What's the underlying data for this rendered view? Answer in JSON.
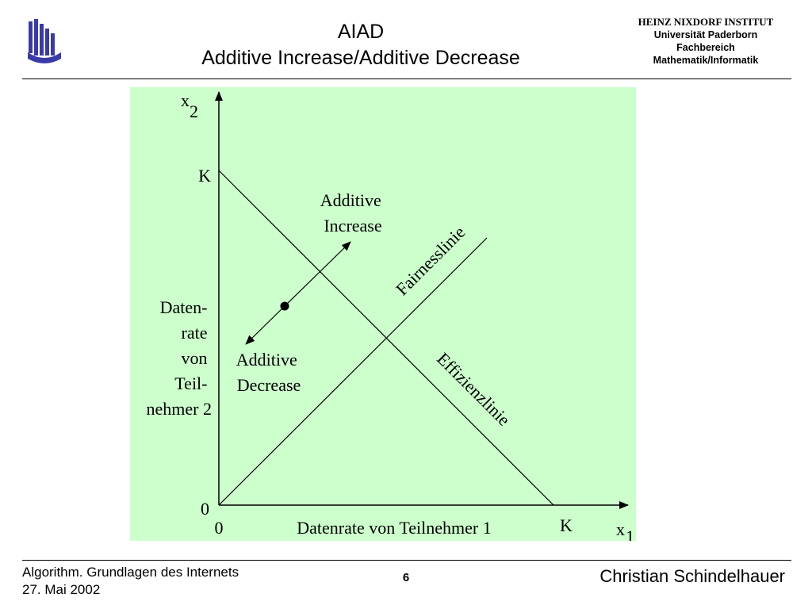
{
  "header": {
    "title_line1": "AIAD",
    "title_line2": "Additive Increase/Additive Decrease",
    "institute_line1": "HEINZ NIXDORF INSTITUT",
    "institute_line2": "Universität Paderborn",
    "institute_line3": "Fachbereich",
    "institute_line4": "Mathematik/Informatik",
    "logo_icon": "university-logo-icon"
  },
  "diagram": {
    "background": "#ccffcc",
    "y_axis_var": "x",
    "y_axis_sub": "2",
    "x_axis_var": "x",
    "x_axis_sub": "1",
    "k_label_y": "K",
    "k_label_x": "K",
    "origin_y": "0",
    "origin_x": "0",
    "x_axis_label": "Datenrate von Teilnehmer 1",
    "y_axis_label_lines": [
      "Daten-",
      "rate",
      "von",
      "Teil-",
      "nehmer 2"
    ],
    "additive_increase_lines": [
      "Additive",
      "Increase"
    ],
    "additive_decrease_lines": [
      "Additive",
      "Decrease"
    ],
    "fairness_line_label": "Fairnesslinie",
    "efficiency_line_label": "Effizienzlinie"
  },
  "footer": {
    "course": "Algorithm. Grundlagen des Internets",
    "date": "27. Mai 2002",
    "page_number": "6",
    "author": "Christian Schindelhauer"
  }
}
